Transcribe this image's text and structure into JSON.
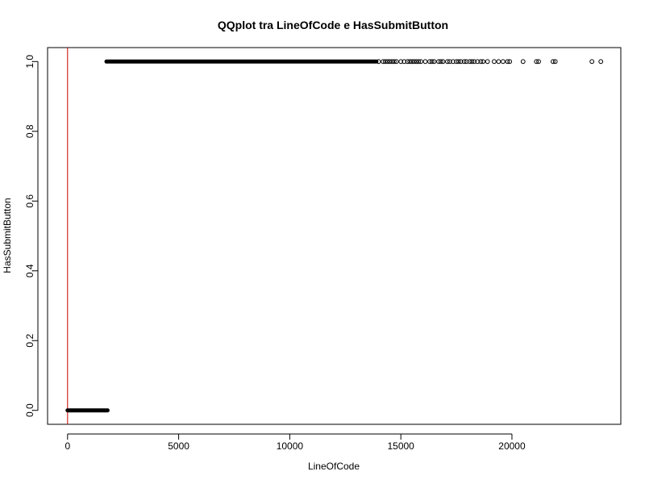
{
  "chart_data": {
    "type": "scatter",
    "title": "QQplot tra LineOfCode e HasSubmitButton",
    "xlabel": "LineOfCode",
    "ylabel": "HasSubmitButton",
    "xlim": [
      -900,
      24900
    ],
    "ylim": [
      -0.04,
      1.04
    ],
    "x_ticks": [
      0,
      5000,
      10000,
      15000,
      20000
    ],
    "x_tick_labels": [
      "0",
      "5000",
      "10000",
      "15000",
      "20000"
    ],
    "y_ticks": [
      0.0,
      0.2,
      0.4,
      0.6,
      0.8,
      1.0
    ],
    "y_tick_labels": [
      "0.0",
      "0.2",
      "0.4",
      "0.6",
      "0.8",
      "1.0"
    ],
    "grid": false,
    "reference_line": {
      "x": 0,
      "color": "#cc0000"
    },
    "series": [
      {
        "name": "",
        "color": "#000000",
        "marker": "open-circle",
        "dense_ranges": [
          {
            "y": 0,
            "x_start": 0,
            "x_end": 1800
          },
          {
            "y": 1,
            "x_start": 1750,
            "x_end": 13900
          }
        ],
        "points": [
          [
            14000,
            1
          ],
          [
            14200,
            1
          ],
          [
            14300,
            1
          ],
          [
            14400,
            1
          ],
          [
            14500,
            1
          ],
          [
            14600,
            1
          ],
          [
            14700,
            1
          ],
          [
            14800,
            1
          ],
          [
            15000,
            1
          ],
          [
            15150,
            1
          ],
          [
            15300,
            1
          ],
          [
            15400,
            1
          ],
          [
            15500,
            1
          ],
          [
            15600,
            1
          ],
          [
            15700,
            1
          ],
          [
            15800,
            1
          ],
          [
            15900,
            1
          ],
          [
            16100,
            1
          ],
          [
            16300,
            1
          ],
          [
            16400,
            1
          ],
          [
            16500,
            1
          ],
          [
            16700,
            1
          ],
          [
            16800,
            1
          ],
          [
            16900,
            1
          ],
          [
            17100,
            1
          ],
          [
            17200,
            1
          ],
          [
            17350,
            1
          ],
          [
            17500,
            1
          ],
          [
            17600,
            1
          ],
          [
            17700,
            1
          ],
          [
            17850,
            1
          ],
          [
            17950,
            1
          ],
          [
            18100,
            1
          ],
          [
            18200,
            1
          ],
          [
            18300,
            1
          ],
          [
            18450,
            1
          ],
          [
            18600,
            1
          ],
          [
            18700,
            1
          ],
          [
            18900,
            1
          ],
          [
            19200,
            1
          ],
          [
            19400,
            1
          ],
          [
            19600,
            1
          ],
          [
            19800,
            1
          ],
          [
            19900,
            1
          ],
          [
            20500,
            1
          ],
          [
            21100,
            1
          ],
          [
            21200,
            1
          ],
          [
            21850,
            1
          ],
          [
            21950,
            1
          ],
          [
            23600,
            1
          ],
          [
            24000,
            1
          ]
        ]
      }
    ]
  }
}
